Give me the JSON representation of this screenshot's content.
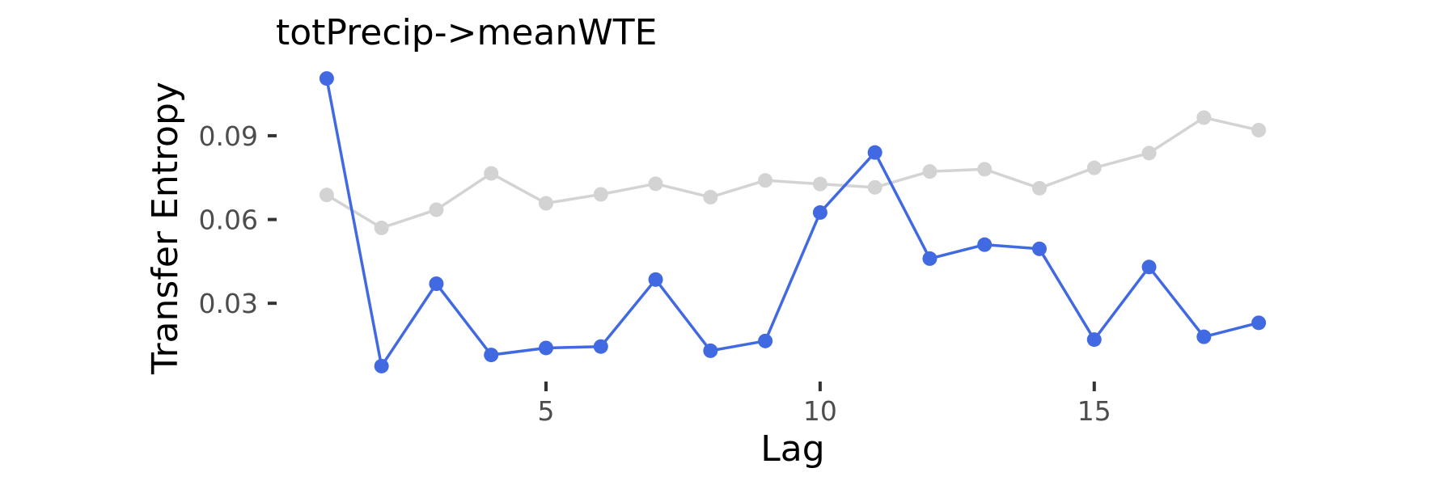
{
  "chart_data": {
    "type": "line",
    "title": "totPrecip->meanWTE",
    "xlabel": "Lag",
    "ylabel": "Transfer Entropy",
    "xlim": [
      0.5,
      18.5
    ],
    "ylim": [
      0.004,
      0.114
    ],
    "xticks": [
      5,
      10,
      15
    ],
    "yticks": [
      0.03,
      0.06,
      0.09
    ],
    "ytick_labels": [
      "0.03",
      "0.06",
      "0.09"
    ],
    "grid": false,
    "x": [
      1,
      2,
      3,
      4,
      5,
      6,
      7,
      8,
      9,
      10,
      11,
      12,
      13,
      14,
      15,
      16,
      17,
      18
    ],
    "series": [
      {
        "color": "#d3d3d3",
        "values": [
          0.0688,
          0.057,
          0.0635,
          0.0765,
          0.0658,
          0.069,
          0.0728,
          0.068,
          0.074,
          0.0727,
          0.0715,
          0.0772,
          0.078,
          0.0712,
          0.0785,
          0.0838,
          0.0965,
          0.092
        ]
      },
      {
        "color": "#4169e1",
        "values": [
          0.1105,
          0.0075,
          0.037,
          0.0115,
          0.014,
          0.0145,
          0.0385,
          0.013,
          0.0165,
          0.0625,
          0.084,
          0.046,
          0.051,
          0.0495,
          0.017,
          0.043,
          0.018,
          0.023
        ]
      }
    ]
  }
}
